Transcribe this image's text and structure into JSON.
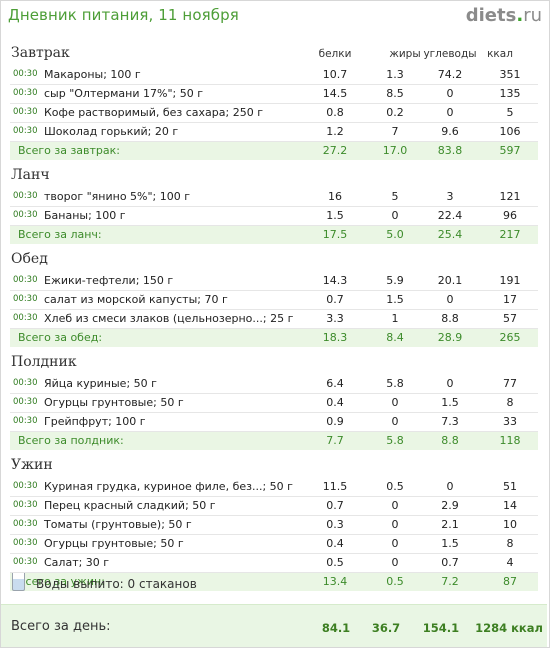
{
  "header": {
    "title": "Дневник питания, 11 ноября",
    "logo_main": "diets",
    "logo_dot": ".",
    "logo_tld": "ru"
  },
  "columns": {
    "protein": "белки",
    "fat": "жиры",
    "carbs": "углеводы",
    "kcal": "ккал"
  },
  "meals": [
    {
      "title": "Завтрак",
      "items": [
        {
          "time": "00:30",
          "name": "Макароны; 100 г",
          "p": "10.7",
          "f": "1.3",
          "c": "74.2",
          "k": "351"
        },
        {
          "time": "00:30",
          "name": "сыр \"Олтермани 17%\"; 50 г",
          "p": "14.5",
          "f": "8.5",
          "c": "0",
          "k": "135"
        },
        {
          "time": "00:30",
          "name": "Кофе растворимый, без сахара; 250 г",
          "p": "0.8",
          "f": "0.2",
          "c": "0",
          "k": "5"
        },
        {
          "time": "00:30",
          "name": "Шоколад горький; 20 г",
          "p": "1.2",
          "f": "7",
          "c": "9.6",
          "k": "106"
        }
      ],
      "total": {
        "label": "Всего за завтрак:",
        "p": "27.2",
        "f": "17.0",
        "c": "83.8",
        "k": "597"
      }
    },
    {
      "title": "Ланч",
      "items": [
        {
          "time": "00:30",
          "name": "творог \"янино 5%\"; 100 г",
          "p": "16",
          "f": "5",
          "c": "3",
          "k": "121"
        },
        {
          "time": "00:30",
          "name": "Бананы; 100 г",
          "p": "1.5",
          "f": "0",
          "c": "22.4",
          "k": "96"
        }
      ],
      "total": {
        "label": "Всего за ланч:",
        "p": "17.5",
        "f": "5.0",
        "c": "25.4",
        "k": "217"
      }
    },
    {
      "title": "Обед",
      "items": [
        {
          "time": "00:30",
          "name": "Ежики-тефтели; 150 г",
          "p": "14.3",
          "f": "5.9",
          "c": "20.1",
          "k": "191"
        },
        {
          "time": "00:30",
          "name": "салат из морской капусты; 70 г",
          "p": "0.7",
          "f": "1.5",
          "c": "0",
          "k": "17"
        },
        {
          "time": "00:30",
          "name": "Хлеб из смеси злаков (цельнозерно...; 25 г",
          "p": "3.3",
          "f": "1",
          "c": "8.8",
          "k": "57"
        }
      ],
      "total": {
        "label": "Всего за обед:",
        "p": "18.3",
        "f": "8.4",
        "c": "28.9",
        "k": "265"
      }
    },
    {
      "title": "Полдник",
      "items": [
        {
          "time": "00:30",
          "name": "Яйца куриные; 50 г",
          "p": "6.4",
          "f": "5.8",
          "c": "0",
          "k": "77"
        },
        {
          "time": "00:30",
          "name": "Огурцы грунтовые; 50 г",
          "p": "0.4",
          "f": "0",
          "c": "1.5",
          "k": "8"
        },
        {
          "time": "00:30",
          "name": "Грейпфрут; 100 г",
          "p": "0.9",
          "f": "0",
          "c": "7.3",
          "k": "33"
        }
      ],
      "total": {
        "label": "Всего за полдник:",
        "p": "7.7",
        "f": "5.8",
        "c": "8.8",
        "k": "118"
      }
    },
    {
      "title": "Ужин",
      "items": [
        {
          "time": "00:30",
          "name": "Куриная грудка, куриное филе, без...; 50 г",
          "p": "11.5",
          "f": "0.5",
          "c": "0",
          "k": "51"
        },
        {
          "time": "00:30",
          "name": "Перец красный сладкий; 50 г",
          "p": "0.7",
          "f": "0",
          "c": "2.9",
          "k": "14"
        },
        {
          "time": "00:30",
          "name": "Томаты (грунтовые); 50 г",
          "p": "0.3",
          "f": "0",
          "c": "2.1",
          "k": "10"
        },
        {
          "time": "00:30",
          "name": "Огурцы грунтовые; 50 г",
          "p": "0.4",
          "f": "0",
          "c": "1.5",
          "k": "8"
        },
        {
          "time": "00:30",
          "name": "Салат; 30 г",
          "p": "0.5",
          "f": "0",
          "c": "0.7",
          "k": "4"
        }
      ],
      "total": {
        "label": "Всего за ужин:",
        "p": "13.4",
        "f": "0.5",
        "c": "7.2",
        "k": "87"
      }
    }
  ],
  "water": {
    "icon": "water-glass-icon",
    "text": "Воды выпито: 0 стаканов"
  },
  "day_total": {
    "label": "Всего за день:",
    "p": "84.1",
    "f": "36.7",
    "c": "154.1",
    "k": "1284 ккал"
  }
}
